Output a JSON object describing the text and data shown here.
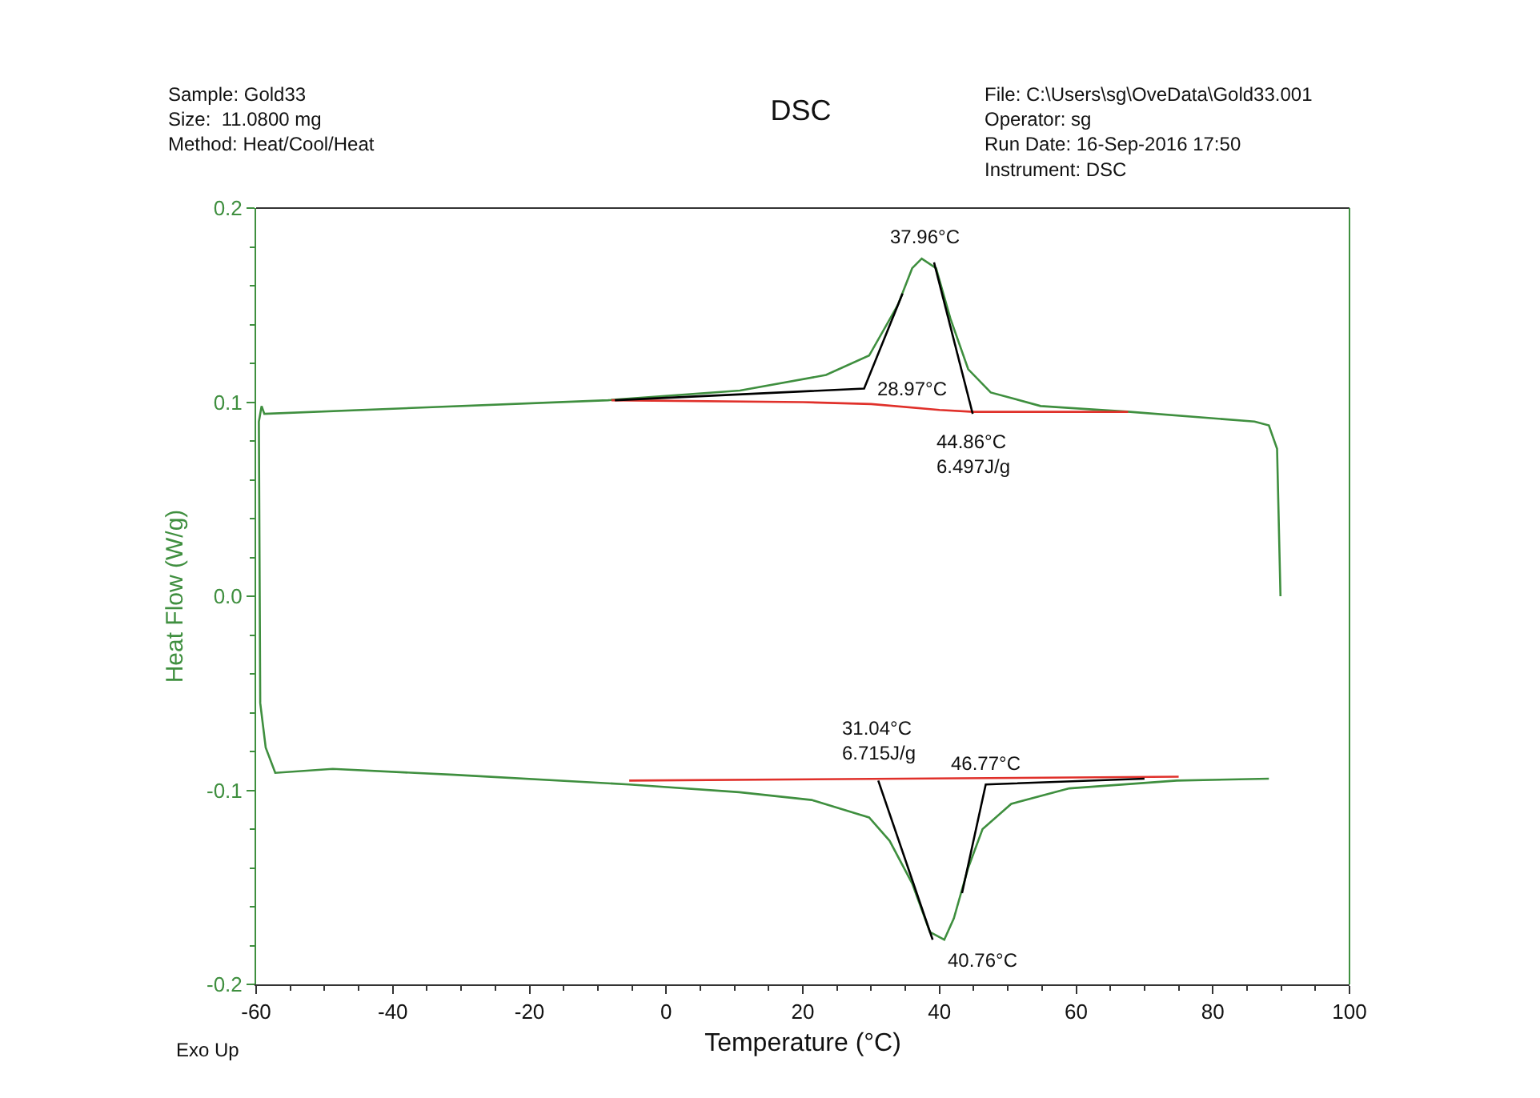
{
  "chart_data": {
    "type": "line",
    "title": "DSC",
    "xlabel": "Temperature (°C)",
    "ylabel": "Heat Flow (W/g)",
    "xlim": [
      -60,
      100
    ],
    "xticks": [
      -60,
      -40,
      -20,
      0,
      20,
      40,
      60,
      80,
      100
    ],
    "ylim": [
      -0.2,
      0.2
    ],
    "yticks": [
      -0.2,
      -0.1,
      {
        "value": 0,
        "label": "0.0"
      },
      0.1,
      0.2
    ],
    "marker": "none",
    "line_style": "solid",
    "series": [
      {
        "color": "#3f8f3f",
        "x": [
          88.2,
          74.7,
          59,
          50.5,
          46.3,
          44.2,
          42.1,
          40.7,
          38.6,
          36,
          32.7,
          29.7,
          21.3,
          10.7,
          -5.4,
          -31,
          -48.8,
          -57.2,
          -58.6,
          -59.4,
          -59.6,
          -59.2,
          -58.8,
          -8.5,
          10.8,
          23.4,
          29.7,
          33.9,
          36,
          37.4,
          39.5,
          41.6,
          44.2,
          47.5,
          54.8,
          67.9,
          86.1,
          88.2,
          89.4,
          89.9
        ],
        "values": [
          -0.094,
          -0.095,
          -0.099,
          -0.107,
          -0.12,
          -0.14,
          -0.166,
          -0.177,
          -0.173,
          -0.148,
          -0.126,
          -0.114,
          -0.105,
          -0.101,
          -0.097,
          -0.092,
          -0.089,
          -0.091,
          -0.078,
          -0.055,
          0.09,
          0.098,
          0.094,
          0.101,
          0.106,
          0.114,
          0.124,
          0.15,
          0.169,
          0.174,
          0.169,
          0.143,
          0.117,
          0.105,
          0.098,
          0.095,
          0.09,
          0.088,
          0.076,
          0.0
        ]
      },
      {
        "color": "#e0302a",
        "x": [
          -8,
          20,
          30,
          40,
          45,
          67.6
        ],
        "values": [
          0.101,
          0.1,
          0.099,
          0.096,
          0.095,
          0.095
        ]
      },
      {
        "color": "#e0302a",
        "x": [
          -5.4,
          75
        ],
        "values": [
          -0.095,
          -0.093
        ]
      },
      {
        "color": "#000000",
        "x": [
          -7.5,
          28.97,
          34.6
        ],
        "values": [
          0.101,
          0.107,
          0.156
        ]
      },
      {
        "color": "#000000",
        "x": [
          39.2,
          44.86
        ],
        "values": [
          0.172,
          0.094
        ]
      },
      {
        "color": "#000000",
        "x": [
          31.04,
          39
        ],
        "values": [
          -0.095,
          -0.177
        ]
      },
      {
        "color": "#000000",
        "x": [
          43.3,
          46.77,
          70
        ],
        "values": [
          -0.153,
          -0.097,
          -0.094
        ]
      }
    ],
    "annotations": [
      "Sample: Gold33\nSize:  11.0800 mg\nMethod: Heat/Cool/Heat",
      "File: C:\\Users\\sg\\OveData\\Gold33.001\nOperator: sg\nRun Date: 16-Sep-2016 17:50\nInstrument: DSC",
      "Exo Up",
      {
        "text": "37.96°C",
        "x": 37.96,
        "y": 0.173
      },
      {
        "text": "28.97°C",
        "x": 28.97,
        "y": 0.107
      },
      {
        "text": "44.86°C\n6.497J/g",
        "x": 44.86,
        "y": 0.094
      },
      {
        "text": "31.04°C\n6.715J/g",
        "x": 31.04,
        "y": -0.095
      },
      {
        "text": "46.77°C",
        "x": 46.77,
        "y": -0.097
      },
      {
        "text": "40.76°C",
        "x": 40.76,
        "y": -0.177
      }
    ]
  }
}
